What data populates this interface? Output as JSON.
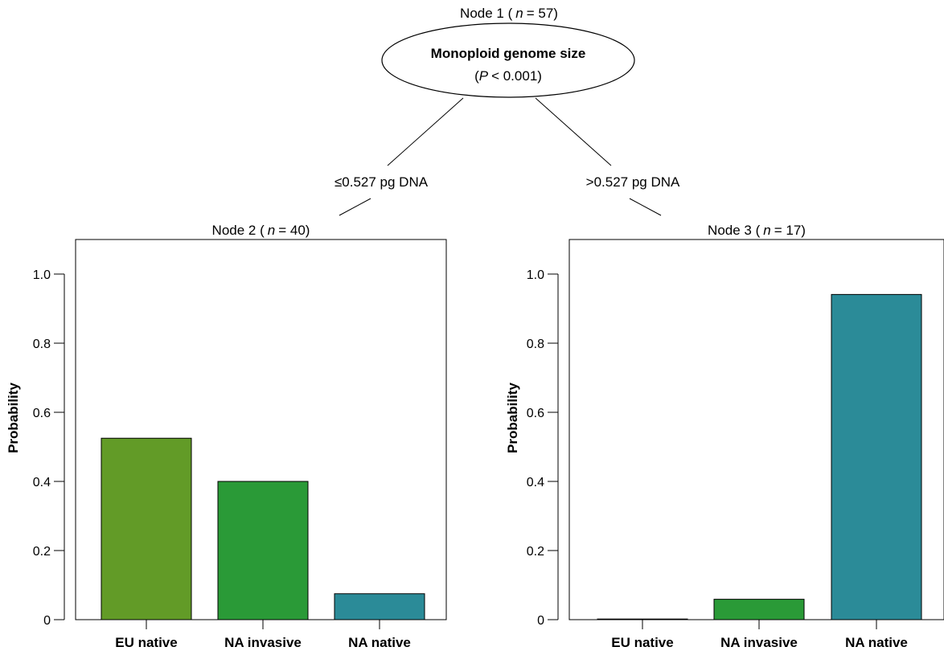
{
  "tree": {
    "root": {
      "title": "Node 1 (",
      "n_label": "n",
      "n_value": "= 57)",
      "split_variable": "Monoploid genome size",
      "p_open": "(",
      "p_label": "P",
      "p_value": "< 0.001)"
    },
    "edges": {
      "left": "≤0.527 pg DNA",
      "right": ">0.527 pg DNA"
    }
  },
  "chart_data": [
    {
      "type": "bar",
      "title_prefix": "Node 2 (",
      "title_n": "n",
      "title_suffix": "= 40)",
      "ylabel": "Probability",
      "ylim": [
        0,
        1.0
      ],
      "yticks": [
        "0",
        "0.2",
        "0.4",
        "0.6",
        "0.8",
        "1.0"
      ],
      "categories": [
        "EU native",
        "NA invasive",
        "NA native"
      ],
      "values": [
        0.525,
        0.4,
        0.075
      ],
      "colors": [
        "#629b27",
        "#2a9a37",
        "#2b8b98"
      ]
    },
    {
      "type": "bar",
      "title_prefix": "Node 3 (",
      "title_n": "n",
      "title_suffix": "= 17)",
      "ylabel": "Probability",
      "ylim": [
        0,
        1.0
      ],
      "yticks": [
        "0",
        "0.2",
        "0.4",
        "0.6",
        "0.8",
        "1.0"
      ],
      "categories": [
        "EU native",
        "NA invasive",
        "NA native"
      ],
      "values": [
        0.0,
        0.059,
        0.941
      ],
      "colors": [
        "#629b27",
        "#2a9a37",
        "#2b8b98"
      ]
    }
  ]
}
